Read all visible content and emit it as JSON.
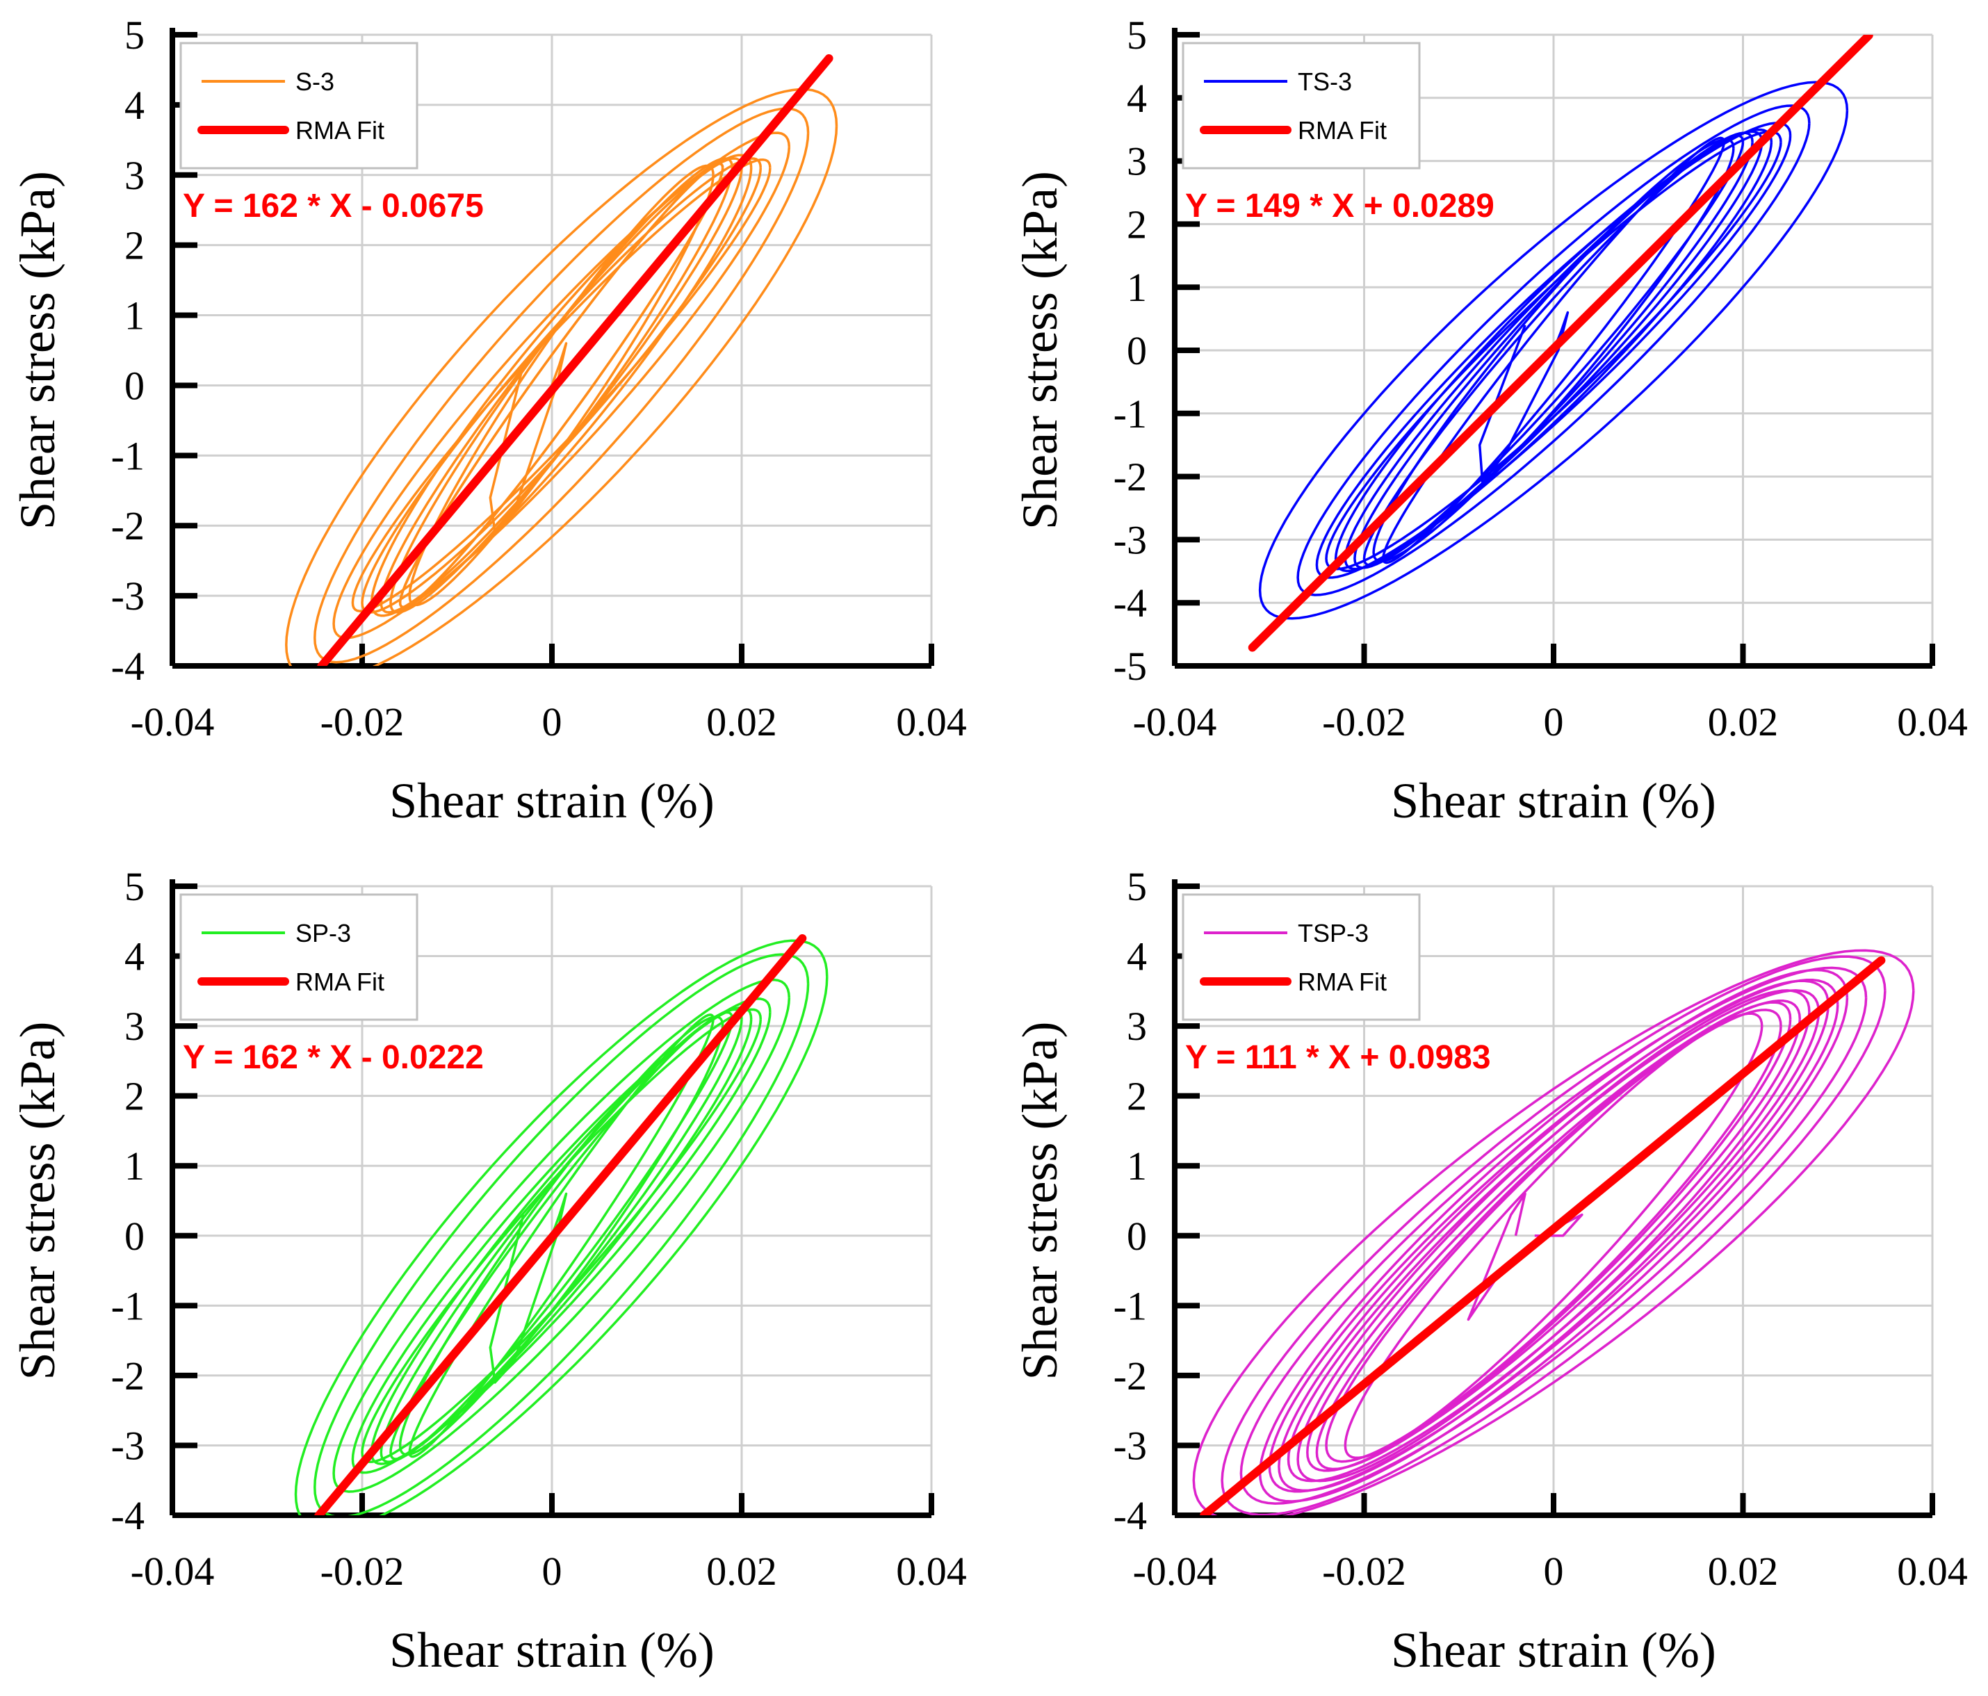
{
  "chart_data": [
    {
      "type": "line",
      "panel": "top-left",
      "xlabel": "Shear strain (%)",
      "ylabel": "Shear stress (kPa)",
      "xlim": [
        -0.04,
        0.04
      ],
      "ylim": [
        -4,
        5
      ],
      "xticks": [
        -0.04,
        -0.02,
        0,
        0.02,
        0.04
      ],
      "xtick_labels": [
        "-0.04",
        "-0.02",
        "0",
        "0.02",
        "0.04"
      ],
      "yticks": [
        -4,
        -3,
        -2,
        -1,
        0,
        1,
        2,
        3,
        4,
        5
      ],
      "ytick_labels": [
        "-4",
        "-3",
        "-2",
        "-1",
        "0",
        "1",
        "2",
        "3",
        "4",
        "5"
      ],
      "grid": true,
      "legend_position": "top-left",
      "equation": "Y = 162 * X - 0.0675",
      "series": [
        {
          "name": "S-3",
          "kind": "hysteresis",
          "color": "#ff8c1a",
          "initial": [
            [
              0.0,
              0.0
            ],
            [
              0.0008,
              0.3
            ],
            [
              0.0015,
              0.6
            ],
            [
              0.0005,
              0.0
            ],
            [
              -0.004,
              -1.8
            ],
            [
              -0.006,
              -2.1
            ],
            [
              -0.0065,
              -1.6
            ],
            [
              -0.003,
              0.3
            ]
          ],
          "center": [
            0.001,
            0.0
          ],
          "cycles": [
            [
              0.017,
              3.1,
              0.2
            ],
            [
              0.016,
              3.0,
              0.3
            ],
            [
              0.017,
              3.1,
              0.2
            ],
            [
              0.018,
              3.1,
              0.3
            ],
            [
              0.019,
              3.1,
              0.3
            ],
            [
              0.02,
              3.1,
              0.35
            ],
            [
              0.021,
              3.1,
              0.3
            ],
            [
              0.022,
              3.1,
              0.28
            ],
            [
              0.024,
              3.4,
              0.35
            ],
            [
              0.026,
              3.6,
              0.45
            ],
            [
              0.029,
              3.7,
              0.55
            ]
          ]
        },
        {
          "name": "RMA Fit",
          "kind": "fit",
          "color": "#ff0000",
          "slope": 162,
          "intercept": -0.0675,
          "x": [
            -0.0243,
            0.0292
          ]
        }
      ]
    },
    {
      "type": "line",
      "panel": "top-right",
      "xlabel": "Shear strain (%)",
      "ylabel": "Shear stress (kPa)",
      "xlim": [
        -0.04,
        0.04
      ],
      "ylim": [
        -5,
        5
      ],
      "xticks": [
        -0.04,
        -0.02,
        0,
        0.02,
        0.04
      ],
      "xtick_labels": [
        "-0.04",
        "-0.02",
        "0",
        "0.02",
        "0.04"
      ],
      "yticks": [
        -5,
        -4,
        -3,
        -2,
        -1,
        0,
        1,
        2,
        3,
        4,
        5
      ],
      "ytick_labels": [
        "-5",
        "-4",
        "-3",
        "-2",
        "-1",
        "0",
        "1",
        "2",
        "3",
        "4",
        "5"
      ],
      "grid": true,
      "legend_position": "top-left",
      "equation": "Y = 149 * X + 0.0289",
      "series": [
        {
          "name": "TS-3",
          "kind": "hysteresis",
          "color": "#0000ff",
          "initial": [
            [
              0.0,
              0.0
            ],
            [
              0.0008,
              0.3
            ],
            [
              0.0015,
              0.6
            ],
            [
              0.0005,
              0.0
            ],
            [
              -0.005,
              -1.6
            ],
            [
              -0.0075,
              -2.1
            ],
            [
              -0.0078,
              -1.5
            ],
            [
              -0.003,
              0.4
            ]
          ],
          "center": [
            0.0,
            0.0
          ],
          "cycles": [
            [
              0.018,
              3.3,
              0.2
            ],
            [
              0.019,
              3.2,
              0.3
            ],
            [
              0.02,
              3.3,
              0.25
            ],
            [
              0.021,
              3.3,
              0.3
            ],
            [
              0.022,
              3.3,
              0.32
            ],
            [
              0.023,
              3.3,
              0.35
            ],
            [
              0.024,
              3.3,
              0.32
            ],
            [
              0.025,
              3.4,
              0.35
            ],
            [
              0.027,
              3.6,
              0.4
            ],
            [
              0.031,
              3.8,
              0.5
            ]
          ]
        },
        {
          "name": "RMA Fit",
          "kind": "fit",
          "color": "#ff0000",
          "slope": 149,
          "intercept": 0.0289,
          "x": [
            -0.0318,
            0.0333
          ]
        }
      ]
    },
    {
      "type": "line",
      "panel": "bottom-left",
      "xlabel": "Shear strain (%)",
      "ylabel": "Shear stress (kPa)",
      "xlim": [
        -0.04,
        0.04
      ],
      "ylim": [
        -4,
        5
      ],
      "xticks": [
        -0.04,
        -0.02,
        0,
        0.02,
        0.04
      ],
      "xtick_labels": [
        "-0.04",
        "-0.02",
        "0",
        "0.02",
        "0.04"
      ],
      "yticks": [
        -4,
        -3,
        -2,
        -1,
        0,
        1,
        2,
        3,
        4,
        5
      ],
      "ytick_labels": [
        "-4",
        "-3",
        "-2",
        "-1",
        "0",
        "1",
        "2",
        "3",
        "4",
        "5"
      ],
      "grid": true,
      "legend_position": "top-left",
      "equation": "Y = 162 * X - 0.0222",
      "series": [
        {
          "name": "SP-3",
          "kind": "hysteresis",
          "color": "#22ee22",
          "initial": [
            [
              0.0,
              0.0
            ],
            [
              0.0008,
              0.3
            ],
            [
              0.0015,
              0.6
            ],
            [
              0.0005,
              0.0
            ],
            [
              -0.004,
              -1.8
            ],
            [
              -0.006,
              -2.1
            ],
            [
              -0.0065,
              -1.6
            ],
            [
              -0.003,
              0.3
            ]
          ],
          "center": [
            0.001,
            0.0
          ],
          "cycles": [
            [
              0.016,
              3.1,
              0.2
            ],
            [
              0.017,
              3.0,
              0.3
            ],
            [
              0.018,
              3.1,
              0.25
            ],
            [
              0.019,
              3.1,
              0.3
            ],
            [
              0.02,
              3.1,
              0.33
            ],
            [
              0.021,
              3.1,
              0.3
            ],
            [
              0.022,
              3.2,
              0.35
            ],
            [
              0.024,
              3.4,
              0.4
            ],
            [
              0.026,
              3.6,
              0.5
            ],
            [
              0.028,
              3.7,
              0.55
            ]
          ]
        },
        {
          "name": "RMA Fit",
          "kind": "fit",
          "color": "#ff0000",
          "slope": 162,
          "intercept": -0.0222,
          "x": [
            -0.0246,
            0.0264
          ]
        }
      ]
    },
    {
      "type": "line",
      "panel": "bottom-right",
      "xlabel": "Shear strain (%)",
      "ylabel": "Shear stress (kPa)",
      "xlim": [
        -0.04,
        0.04
      ],
      "ylim": [
        -4,
        5
      ],
      "xticks": [
        -0.04,
        -0.02,
        0,
        0.02,
        0.04
      ],
      "xtick_labels": [
        "-0.04",
        "-0.02",
        "0",
        "0.02",
        "0.04"
      ],
      "yticks": [
        -4,
        -3,
        -2,
        -1,
        0,
        1,
        2,
        3,
        4,
        5
      ],
      "ytick_labels": [
        "-4",
        "-3",
        "-2",
        "-1",
        "0",
        "1",
        "2",
        "3",
        "4",
        "5"
      ],
      "grid": true,
      "legend_position": "top-left",
      "equation": "Y = 111 * X + 0.0983",
      "series": [
        {
          "name": "TSP-3",
          "kind": "hysteresis",
          "color": "#dd22cc",
          "initial": [
            [
              -0.004,
              0.0
            ],
            [
              -0.003,
              0.6
            ],
            [
              -0.0045,
              0.3
            ],
            [
              -0.009,
              -1.2
            ],
            [
              -0.006,
              -0.6
            ],
            [
              0.0,
              0.1
            ],
            [
              0.003,
              0.3
            ],
            [
              0.001,
              0.0
            ],
            [
              -0.002,
              0.0
            ]
          ],
          "center": [
            0.0,
            0.0
          ],
          "cycles": [
            [
              0.022,
              3.0,
              0.35
            ],
            [
              0.024,
              3.0,
              0.4
            ],
            [
              0.025,
              3.1,
              0.4
            ],
            [
              0.026,
              3.1,
              0.42
            ],
            [
              0.027,
              3.2,
              0.45
            ],
            [
              0.028,
              3.2,
              0.45
            ],
            [
              0.029,
              3.3,
              0.47
            ],
            [
              0.03,
              3.3,
              0.48
            ],
            [
              0.031,
              3.4,
              0.5
            ],
            [
              0.033,
              3.4,
              0.52
            ],
            [
              0.035,
              3.5,
              0.55
            ],
            [
              0.038,
              3.5,
              0.6
            ]
          ]
        },
        {
          "name": "RMA Fit",
          "kind": "fit",
          "color": "#ff0000",
          "slope": 111,
          "intercept": 0.0983,
          "x": [
            -0.0369,
            0.0346
          ]
        }
      ]
    }
  ]
}
